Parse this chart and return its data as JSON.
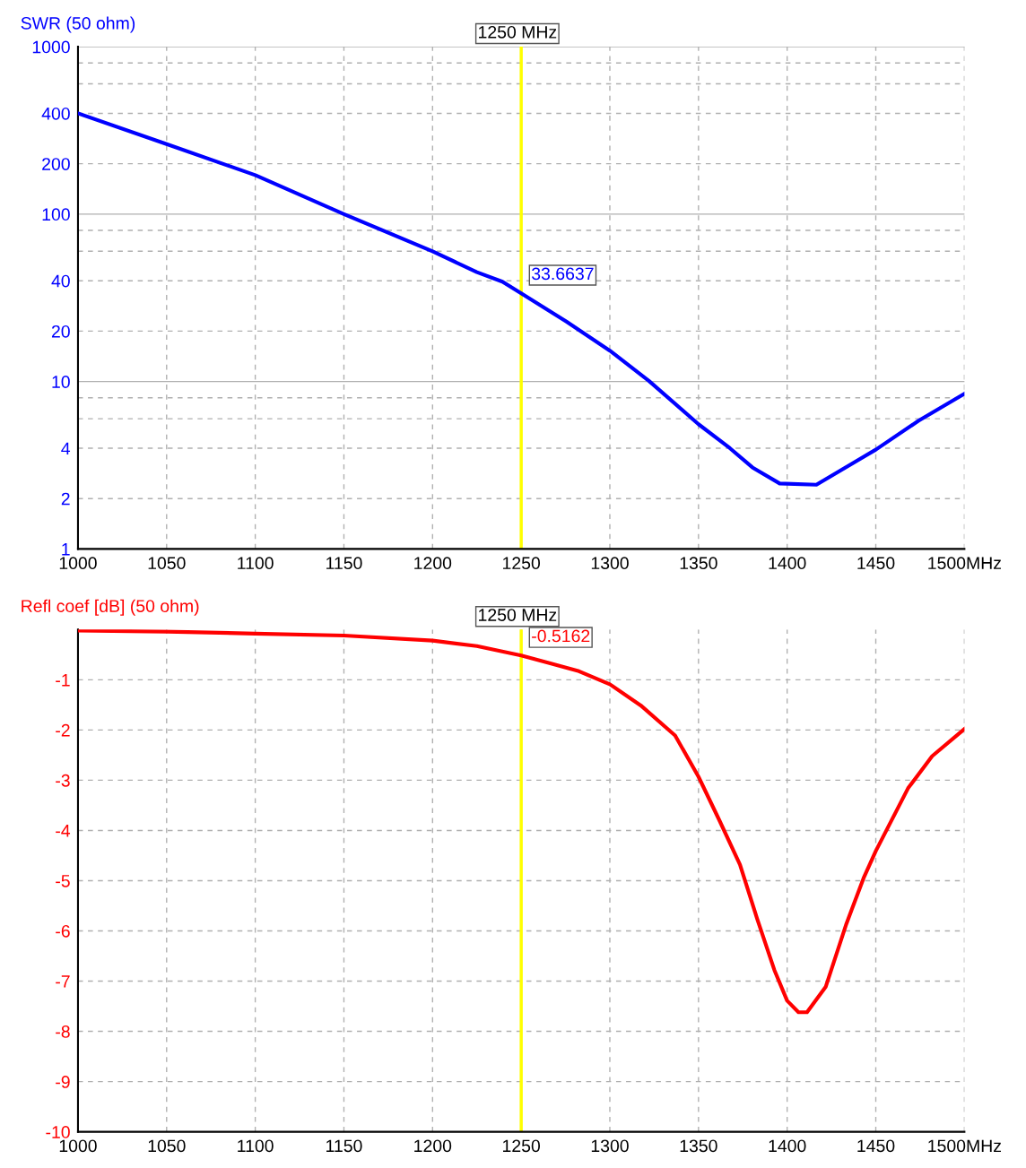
{
  "chart_data": [
    {
      "type": "line",
      "title": "SWR (50 ohm)",
      "log": "y",
      "grid": true,
      "marker": "none",
      "line_style": "solid",
      "xlim": [
        1000,
        1500
      ],
      "xticks": [
        1000,
        1050,
        1100,
        1150,
        1200,
        1250,
        1300,
        1350,
        1400,
        1450,
        {
          "value": 1500,
          "label": "1500MHz"
        }
      ],
      "ylim": [
        1,
        1000
      ],
      "yticks": [
        1,
        2,
        4,
        {
          "value": 6,
          "label": null
        },
        {
          "value": 8,
          "label": null
        },
        10,
        20,
        40,
        {
          "value": 60,
          "label": null
        },
        {
          "value": 80,
          "label": null
        },
        100,
        200,
        400,
        {
          "value": 600,
          "label": null
        },
        {
          "value": 800,
          "label": null
        },
        1000
      ],
      "series": [
        {
          "color": "#0000ff",
          "x": [
            1000,
            1050,
            1100,
            1150,
            1200,
            1225,
            1239.4,
            1250,
            1275.5,
            1300,
            1322,
            1350,
            1367.7,
            1380.4,
            1395.8,
            1416.5,
            1450,
            1474,
            1500
          ],
          "values": [
            400,
            262,
            171,
            100,
            60,
            45,
            39.5,
            33.6637,
            22.8,
            15.3,
            10.1,
            5.56,
            4.0,
            3.07,
            2.46,
            2.42,
            3.92,
            5.82,
            8.45
          ]
        }
      ],
      "ref_lines": [
        {
          "axis": "x",
          "value": 1250,
          "label": "1250 MHz",
          "color": "#ffff00"
        }
      ],
      "annotations": [
        {
          "text": "33.6637",
          "x": 1250,
          "y": 33.6637
        }
      ]
    },
    {
      "type": "line",
      "title": "Refl coef [dB] (50 ohm)",
      "grid": true,
      "marker": "none",
      "line_style": "solid",
      "xlim": [
        1000,
        1500
      ],
      "xticks": [
        1000,
        1050,
        1100,
        1150,
        1200,
        1250,
        1300,
        1350,
        1400,
        1450,
        {
          "value": 1500,
          "label": "1500MHz"
        }
      ],
      "ylim": [
        -10,
        0
      ],
      "yticks": [
        -10,
        -9,
        -8,
        -7,
        -6,
        -5,
        -4,
        -3,
        -2,
        -1
      ],
      "series": [
        {
          "color": "#ff0000",
          "x": [
            1000,
            1050,
            1100,
            1150,
            1200,
            1225,
            1250,
            1265,
            1282.6,
            1300,
            1317.4,
            1336.8,
            1350,
            1361.8,
            1373.4,
            1383.1,
            1392.8,
            1400,
            1406.4,
            1411.2,
            1421.8,
            1433.4,
            1443.1,
            1450,
            1468.2,
            1481.8,
            1500
          ],
          "values": [
            -0.02,
            -0.04,
            -0.08,
            -0.12,
            -0.22,
            -0.33,
            -0.5162,
            -0.66,
            -0.83,
            -1.09,
            -1.51,
            -2.11,
            -2.93,
            -3.8,
            -4.68,
            -5.76,
            -6.78,
            -7.39,
            -7.62,
            -7.62,
            -7.11,
            -5.86,
            -4.95,
            -4.41,
            -3.16,
            -2.52,
            -1.98
          ]
        }
      ],
      "ref_lines": [
        {
          "axis": "x",
          "value": 1250,
          "label": "1250 MHz",
          "color": "#ffff00"
        }
      ],
      "annotations": [
        {
          "text": "-0.5162",
          "x": 1250,
          "y": -0.5162
        }
      ]
    }
  ]
}
